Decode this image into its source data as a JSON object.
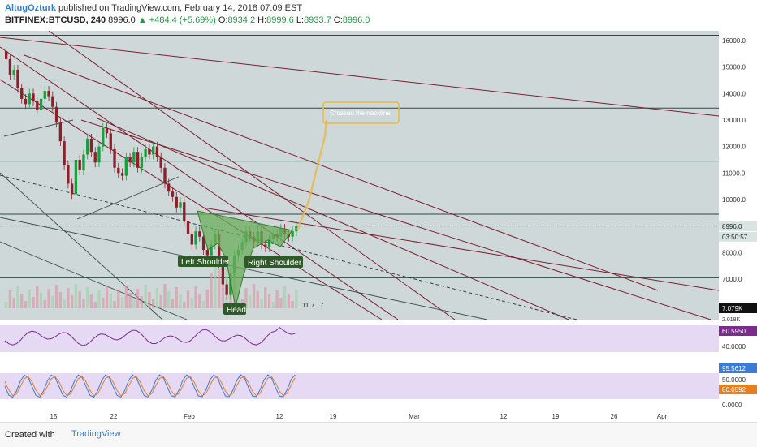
{
  "header": {
    "author": "AltugOzturk",
    "published": "published on TradingView.com, February 14, 2018 07:09 EST",
    "symbol": "BITFINEX:BTCUSD, 240",
    "last": "8996.0",
    "change": "▲ +484.4 (+5.69%)",
    "o_label": "O:",
    "o_val": "8934.2",
    "h_label": "H:",
    "h_val": "8999.6",
    "l_label": "L:",
    "l_val": "8933.7",
    "c_label": "C:",
    "c_val": "8996.0"
  },
  "footer": {
    "created": "Created with",
    "brand": "TradingView"
  },
  "colors": {
    "up": "#1a9e3f",
    "down": "#8b1f2a",
    "bg": "#cfd8d9",
    "trend": "#7b1f2e",
    "pattern": "#6aad5a",
    "arrow": "#e6b94a"
  },
  "chart_data": {
    "type": "candlestick",
    "y_ticks": [
      "16000.0",
      "15000.0",
      "14000.0",
      "13000.0",
      "12000.0",
      "11000.0",
      "10000.0",
      "9000.0",
      "8000.0",
      "7000.0"
    ],
    "x_ticks": [
      "15",
      "22",
      "Feb",
      "12",
      "19",
      "Mar",
      "12",
      "19",
      "26",
      "Apr"
    ],
    "price_labels": {
      "last": "8996.0",
      "countdown": "03:50:57",
      "volume": "7.079K",
      "volume2": "2.018K"
    },
    "annotations": {
      "left_shoulder": "Left Shoulder",
      "head": "Head",
      "right_shoulder": "Right Shoulder",
      "neckline_note": "Crossed the neckline",
      "events": [
        "11",
        "7",
        "7"
      ]
    },
    "candles_close": [
      15300,
      14700,
      14900,
      14200,
      13800,
      13600,
      14000,
      13700,
      13400,
      13800,
      14100,
      13900,
      13500,
      12900,
      12200,
      11300,
      10600,
      10200,
      11500,
      11100,
      11700,
      12300,
      11800,
      11400,
      12000,
      12700,
      12500,
      11900,
      11200,
      11000,
      10900,
      11600,
      11400,
      11800,
      11200,
      11600,
      11900,
      11700,
      12000,
      11600,
      11200,
      10600,
      10300,
      10100,
      9700,
      9900,
      9200,
      8700,
      8300,
      8800,
      8600,
      8100,
      7900,
      8300,
      8700,
      7600,
      6800,
      6400,
      7200,
      7900,
      8100,
      8400,
      8800,
      8600,
      8400,
      8800,
      8300,
      8200,
      8500,
      8700,
      8600,
      8900,
      8700,
      8600,
      8800,
      9000
    ],
    "rsi": {
      "value": "60.5950",
      "ticks": [
        "40.0000"
      ]
    },
    "stoch": {
      "k": "95.5612",
      "d": "80.0592",
      "ticks": [
        "50.0000",
        "0.0000"
      ]
    }
  }
}
